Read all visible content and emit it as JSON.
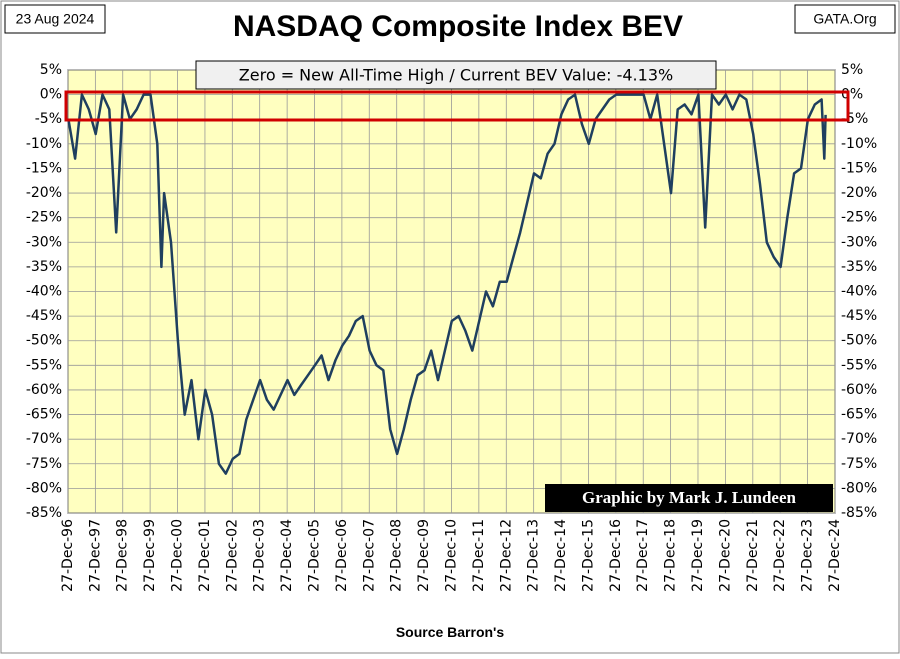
{
  "chart_data": {
    "type": "line",
    "title": "NASDAQ Composite Index BEV",
    "date": "23 Aug 2024",
    "site": "GATA.Org",
    "annotation": "Zero = New All-Time High / Current BEV Value:  -4.13%",
    "credit": "Graphic by Mark J. Lundeen",
    "source": "Source Barron's",
    "x": [
      "1997-01-01",
      "1997-04-01",
      "1997-07-01",
      "1997-10-01",
      "1998-01-01",
      "1998-04-01",
      "1998-07-01",
      "1998-10-01",
      "1999-01-01",
      "1999-04-01",
      "1999-07-01",
      "1999-10-01",
      "2000-01-01",
      "2000-04-01",
      "2000-05-25",
      "2000-07-01",
      "2000-10-01",
      "2001-01-01",
      "2001-04-01",
      "2001-07-01",
      "2001-10-01",
      "2002-01-01",
      "2002-04-01",
      "2002-07-01",
      "2002-10-01",
      "2003-01-01",
      "2003-04-01",
      "2003-07-01",
      "2003-10-01",
      "2004-01-01",
      "2004-04-01",
      "2004-07-01",
      "2004-10-01",
      "2005-01-01",
      "2005-04-01",
      "2005-07-01",
      "2005-10-01",
      "2006-01-01",
      "2006-04-01",
      "2006-07-01",
      "2006-10-01",
      "2007-01-01",
      "2007-04-01",
      "2007-07-01",
      "2007-10-01",
      "2008-01-01",
      "2008-04-01",
      "2008-07-01",
      "2008-10-01",
      "2009-01-01",
      "2009-04-01",
      "2009-07-01",
      "2009-10-01",
      "2010-01-01",
      "2010-04-01",
      "2010-07-01",
      "2010-10-01",
      "2011-01-01",
      "2011-04-01",
      "2011-07-01",
      "2011-10-01",
      "2012-01-01",
      "2012-04-01",
      "2012-07-01",
      "2012-10-01",
      "2013-01-01",
      "2013-04-01",
      "2013-07-01",
      "2013-10-01",
      "2014-01-01",
      "2014-04-01",
      "2014-07-01",
      "2014-10-01",
      "2015-01-01",
      "2015-04-01",
      "2015-07-01",
      "2015-10-01",
      "2016-01-01",
      "2016-04-01",
      "2016-07-01",
      "2016-10-01",
      "2017-01-01",
      "2017-04-01",
      "2017-07-01",
      "2017-10-01",
      "2018-01-01",
      "2018-04-01",
      "2018-07-01",
      "2018-10-01",
      "2019-01-01",
      "2019-04-01",
      "2019-07-01",
      "2019-10-01",
      "2020-01-01",
      "2020-04-01",
      "2020-07-01",
      "2020-10-01",
      "2021-01-01",
      "2021-04-01",
      "2021-07-01",
      "2021-10-01",
      "2022-01-01",
      "2022-04-01",
      "2022-07-01",
      "2022-10-01",
      "2023-01-01",
      "2023-04-01",
      "2023-07-01",
      "2023-10-01",
      "2024-01-01",
      "2024-04-01",
      "2024-07-01",
      "2024-08-06",
      "2024-08-23"
    ],
    "series": [
      {
        "name": "BEV",
        "color": "#1f3f5f",
        "values": [
          -5,
          -13,
          0,
          -3,
          -8,
          0,
          -3,
          -28,
          0,
          -5,
          -3,
          0,
          0,
          -10,
          -35,
          -20,
          -30,
          -50,
          -65,
          -58,
          -70,
          -60,
          -65,
          -75,
          -77,
          -74,
          -73,
          -66,
          -62,
          -58,
          -62,
          -64,
          -61,
          -58,
          -61,
          -59,
          -57,
          -55,
          -53,
          -58,
          -54,
          -51,
          -49,
          -46,
          -45,
          -52,
          -55,
          -56,
          -68,
          -73,
          -68,
          -62,
          -57,
          -56,
          -52,
          -58,
          -52,
          -46,
          -45,
          -48,
          -52,
          -46,
          -40,
          -43,
          -38,
          -38,
          -33,
          -28,
          -22,
          -16,
          -17,
          -12,
          -10,
          -4,
          -1,
          0,
          -6,
          -10,
          -5,
          -3,
          -1,
          0,
          0,
          0,
          0,
          0,
          -5,
          0,
          -10,
          -20,
          -3,
          -2,
          -4,
          0,
          -27,
          0,
          -2,
          0,
          -3,
          0,
          -1,
          -8,
          -18,
          -30,
          -33,
          -35,
          -25,
          -16,
          -15,
          -5,
          -2,
          -1,
          -13,
          -4.13
        ]
      }
    ],
    "xlim": [
      "1996-12-27",
      "2024-12-27"
    ],
    "xticks": [
      {
        "value": "1996-12-27",
        "label": "27-Dec-96"
      },
      {
        "value": "1997-12-27",
        "label": "27-Dec-97"
      },
      {
        "value": "1998-12-27",
        "label": "27-Dec-98"
      },
      {
        "value": "1999-12-27",
        "label": "27-Dec-99"
      },
      {
        "value": "2000-12-27",
        "label": "27-Dec-00"
      },
      {
        "value": "2001-12-27",
        "label": "27-Dec-01"
      },
      {
        "value": "2002-12-27",
        "label": "27-Dec-02"
      },
      {
        "value": "2003-12-27",
        "label": "27-Dec-03"
      },
      {
        "value": "2004-12-27",
        "label": "27-Dec-04"
      },
      {
        "value": "2005-12-27",
        "label": "27-Dec-05"
      },
      {
        "value": "2006-12-27",
        "label": "27-Dec-06"
      },
      {
        "value": "2007-12-27",
        "label": "27-Dec-07"
      },
      {
        "value": "2008-12-27",
        "label": "27-Dec-08"
      },
      {
        "value": "2009-12-27",
        "label": "27-Dec-09"
      },
      {
        "value": "2010-12-27",
        "label": "27-Dec-10"
      },
      {
        "value": "2011-12-27",
        "label": "27-Dec-11"
      },
      {
        "value": "2012-12-27",
        "label": "27-Dec-12"
      },
      {
        "value": "2013-12-27",
        "label": "27-Dec-13"
      },
      {
        "value": "2014-12-27",
        "label": "27-Dec-14"
      },
      {
        "value": "2015-12-27",
        "label": "27-Dec-15"
      },
      {
        "value": "2016-12-27",
        "label": "27-Dec-16"
      },
      {
        "value": "2017-12-27",
        "label": "27-Dec-17"
      },
      {
        "value": "2018-12-27",
        "label": "27-Dec-18"
      },
      {
        "value": "2019-12-27",
        "label": "27-Dec-19"
      },
      {
        "value": "2020-12-27",
        "label": "27-Dec-20"
      },
      {
        "value": "2021-12-27",
        "label": "27-Dec-21"
      },
      {
        "value": "2022-12-27",
        "label": "27-Dec-22"
      },
      {
        "value": "2023-12-27",
        "label": "27-Dec-23"
      },
      {
        "value": "2024-12-27",
        "label": "27-Dec-24"
      }
    ],
    "ylim": [
      5,
      -85
    ],
    "yticks": [
      {
        "value": 5,
        "label": "5%"
      },
      {
        "value": 0,
        "label": "0%"
      },
      {
        "value": -5,
        "label": "-5%"
      },
      {
        "value": -10,
        "label": "-10%"
      },
      {
        "value": -15,
        "label": "-15%"
      },
      {
        "value": -20,
        "label": "-20%"
      },
      {
        "value": -25,
        "label": "-25%"
      },
      {
        "value": -30,
        "label": "-30%"
      },
      {
        "value": -35,
        "label": "-35%"
      },
      {
        "value": -40,
        "label": "-40%"
      },
      {
        "value": -45,
        "label": "-45%"
      },
      {
        "value": -50,
        "label": "-50%"
      },
      {
        "value": -55,
        "label": "-55%"
      },
      {
        "value": -60,
        "label": "-60%"
      },
      {
        "value": -65,
        "label": "-65%"
      },
      {
        "value": -70,
        "label": "-70%"
      },
      {
        "value": -75,
        "label": "-75%"
      },
      {
        "value": -80,
        "label": "-80%"
      },
      {
        "value": -85,
        "label": "-85%"
      }
    ],
    "grid": true
  }
}
